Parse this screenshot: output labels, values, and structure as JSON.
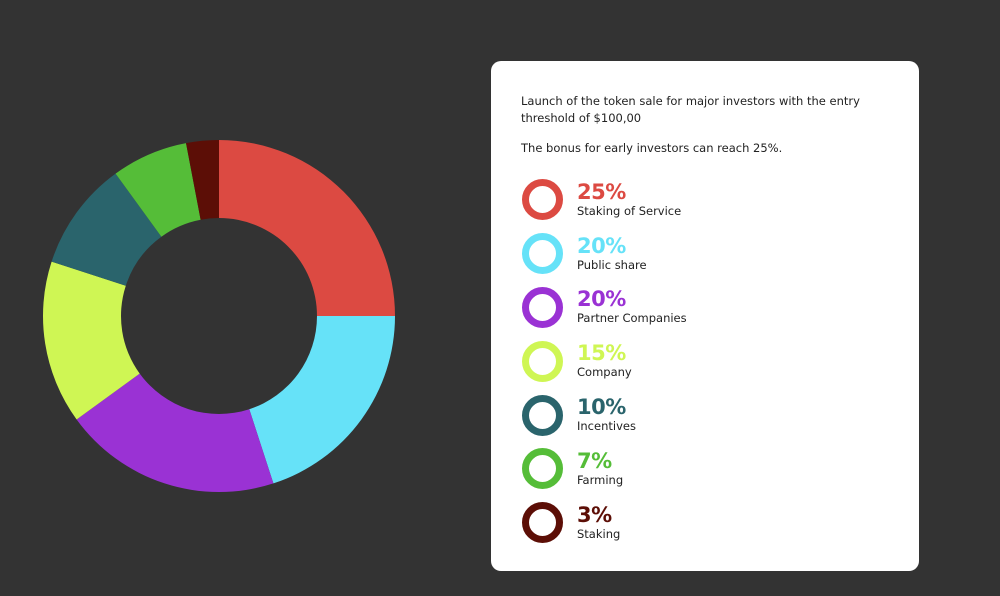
{
  "card": {
    "intro": "Launch of the token sale for major investors with the entry threshold of $100,00",
    "bonus": "The bonus for early investors can reach 25%."
  },
  "chart_data": {
    "type": "pie",
    "variant": "donut",
    "series": [
      {
        "name": "Staking of Service",
        "value": 25,
        "label": "25%",
        "color": "#dc4a42"
      },
      {
        "name": "Public share",
        "value": 20,
        "label": "20%",
        "color": "#66e2f8"
      },
      {
        "name": "Partner Companies",
        "value": 20,
        "label": "20%",
        "color": "#9a32d4"
      },
      {
        "name": "Company",
        "value": 15,
        "label": "15%",
        "color": "#cff654"
      },
      {
        "name": "Incentives",
        "value": 10,
        "label": "10%",
        "color": "#2a646c"
      },
      {
        "name": "Farming",
        "value": 7,
        "label": "7%",
        "color": "#55bd38"
      },
      {
        "name": "Staking",
        "value": 3,
        "label": "3%",
        "color": "#5c0e06"
      }
    ],
    "legend_position": "right"
  }
}
